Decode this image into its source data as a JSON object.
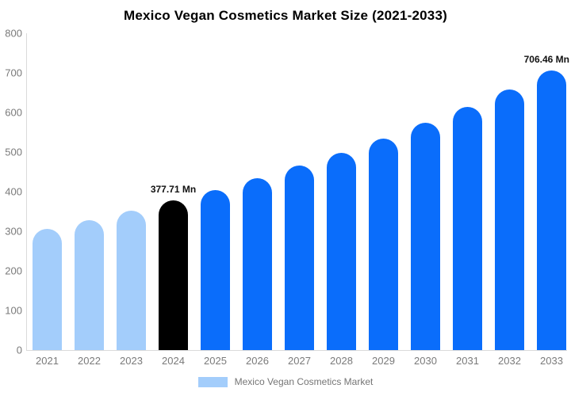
{
  "chart_data": {
    "type": "bar",
    "title": "Mexico Vegan Cosmetics Market Size (2021-2033)",
    "categories": [
      "2021",
      "2022",
      "2023",
      "2024",
      "2025",
      "2026",
      "2027",
      "2028",
      "2029",
      "2030",
      "2031",
      "2032",
      "2033"
    ],
    "values": [
      306.55,
      328.64,
      352.32,
      377.71,
      404.93,
      434.11,
      465.39,
      498.92,
      534.87,
      573.41,
      614.73,
      659.02,
      706.46
    ],
    "value_labels": [
      "",
      "",
      "",
      "377.71 Mn",
      "",
      "",
      "",
      "",
      "",
      "",
      "",
      "",
      "706.46 Mn"
    ],
    "bar_roles": [
      "historical",
      "historical",
      "historical",
      "base_year",
      "forecast",
      "forecast",
      "forecast",
      "forecast",
      "forecast",
      "forecast",
      "forecast",
      "forecast",
      "forecast"
    ],
    "ylim": [
      0,
      800
    ],
    "yticks": [
      0,
      100,
      200,
      300,
      400,
      500,
      600,
      700,
      800
    ],
    "grid": "off",
    "legend_position": "bottom"
  },
  "legend": {
    "label": "Mexico Vegan Cosmetics Market"
  },
  "colors": {
    "historical": "#A3CDFB",
    "base_year": "#000000",
    "forecast": "#0A6DFB",
    "axis_line": "#DADADA",
    "tick_text": "#7A7A7A",
    "data_label": "#111111",
    "title_text": "#000000",
    "background": "#FFFFFF"
  }
}
